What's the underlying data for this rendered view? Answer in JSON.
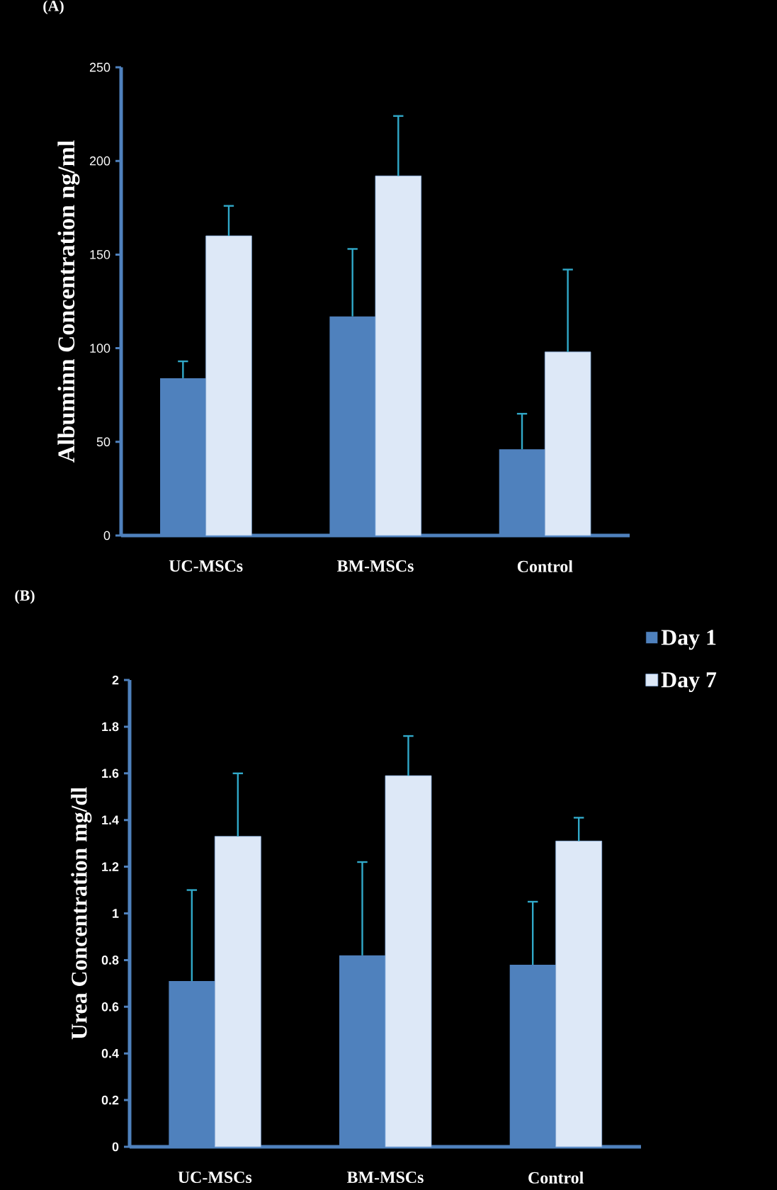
{
  "chart_data": [
    {
      "type": "bar",
      "title": "(A)",
      "categories": [
        "UC-MSCs",
        "BM-MSCs",
        "Control"
      ],
      "ylabel": "Albuminn Concentration ng/ml",
      "ylim": [
        0,
        250
      ],
      "yticks": [
        0,
        50,
        100,
        150,
        200,
        250
      ],
      "series": [
        {
          "color": "#4f81bd",
          "values": [
            84,
            117,
            46
          ],
          "errors": [
            [
              84,
              93
            ],
            [
              117,
              153
            ],
            [
              46,
              65
            ]
          ]
        },
        {
          "color": "#8eb4e3",
          "values": [
            160,
            192,
            98
          ],
          "errors": [
            [
              160,
              176
            ],
            [
              192,
              224
            ],
            [
              98,
              142
            ]
          ]
        }
      ]
    },
    {
      "type": "bar",
      "title": "(B)",
      "categories": [
        "UC-MSCs",
        "BM-MSCs",
        "Control"
      ],
      "ylabel": "Urea Concentration mg/dl",
      "ylim": [
        0,
        2
      ],
      "yticks": [
        0,
        0.2,
        0.4,
        0.6,
        0.8,
        1,
        1.2,
        1.4,
        1.6,
        1.8,
        2
      ],
      "legend": "top right",
      "series": [
        {
          "name": "Day 1",
          "color": "#4f81bd",
          "values": [
            0.71,
            0.82,
            0.78
          ],
          "errors": [
            [
              0.71,
              1.1
            ],
            [
              0.82,
              1.22
            ],
            [
              0.78,
              1.05
            ]
          ]
        },
        {
          "name": "Day 7",
          "color": "#8eb4e3",
          "values": [
            1.33,
            1.59,
            1.31
          ],
          "errors": [
            [
              1.33,
              1.6
            ],
            [
              1.59,
              1.76
            ],
            [
              1.31,
              1.41
            ]
          ]
        }
      ]
    }
  ]
}
